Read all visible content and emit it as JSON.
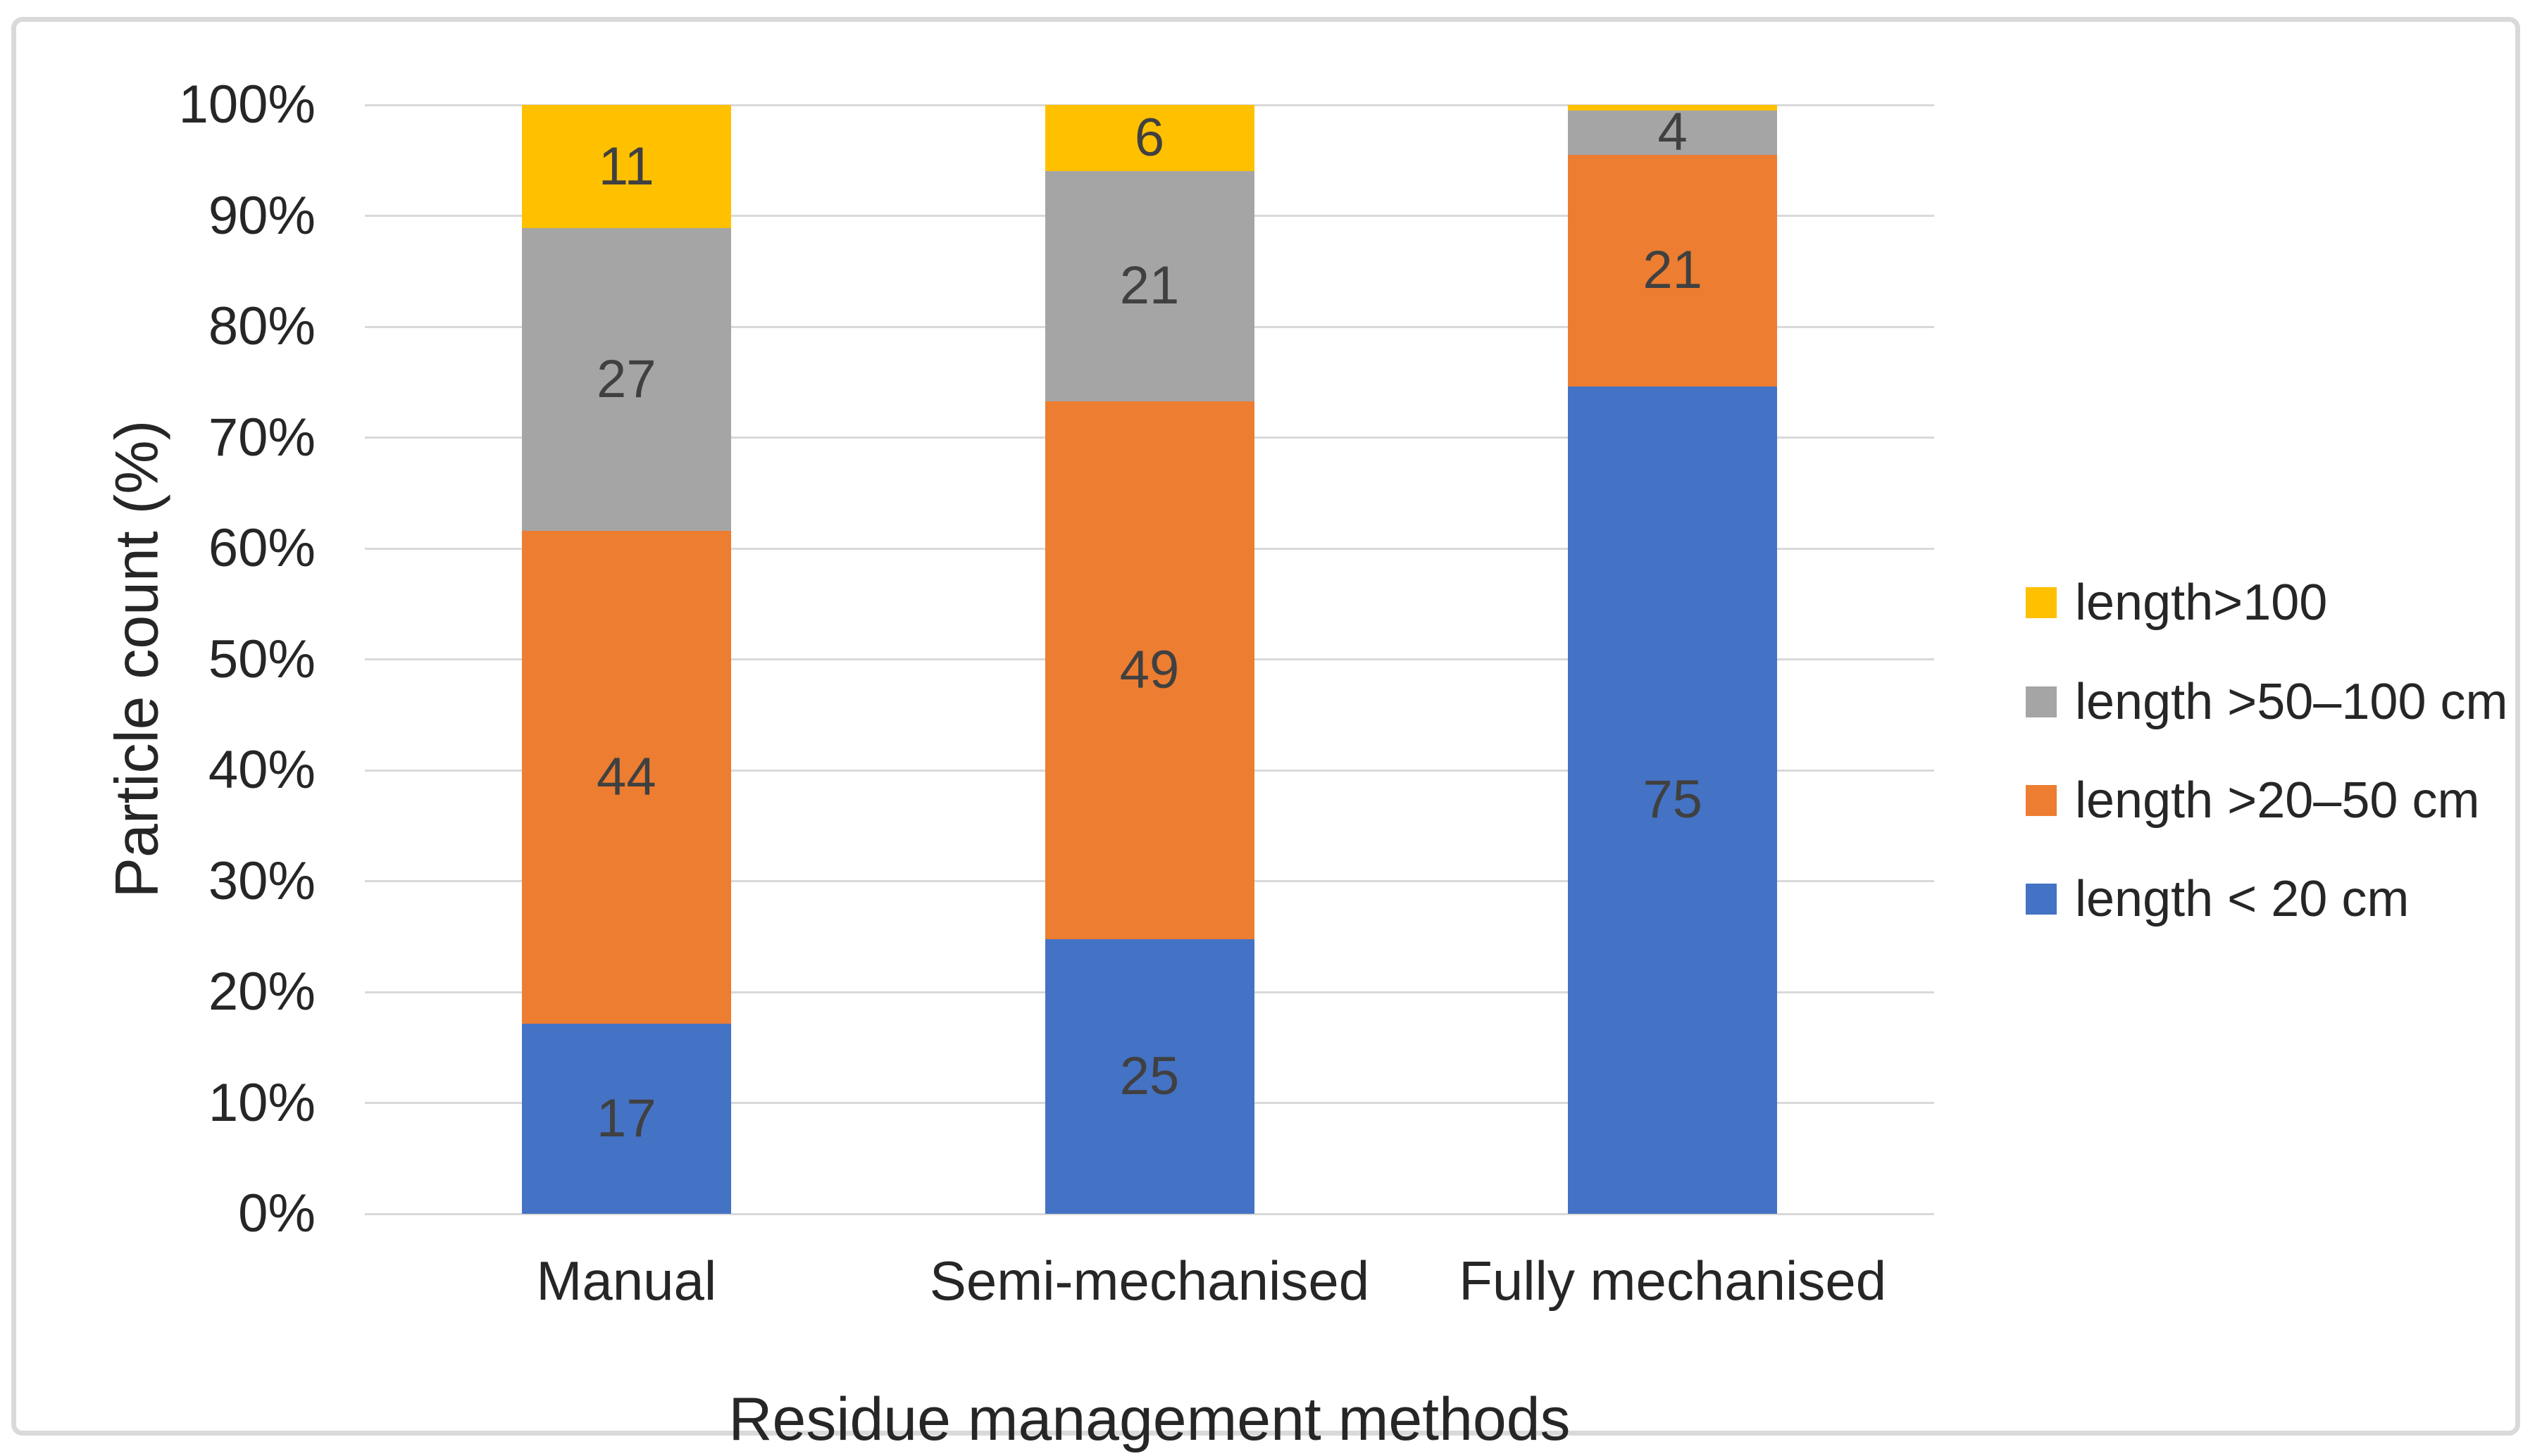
{
  "chart_data": {
    "type": "bar",
    "stacking": "percent",
    "title": "",
    "xlabel": "Residue management methods",
    "ylabel": "Particle count (%)",
    "categories": [
      "Manual",
      "Semi-mechanised",
      "Fully mechanised"
    ],
    "series": [
      {
        "name": "length < 20 cm",
        "color": "#4472C4",
        "values": [
          17,
          25,
          75
        ],
        "labels": [
          "17",
          "25",
          "75"
        ]
      },
      {
        "name": "length >20–50 cm",
        "color": "#ED7D31",
        "values": [
          44,
          49,
          21
        ],
        "labels": [
          "44",
          "49",
          "21"
        ]
      },
      {
        "name": "length >50–100 cm",
        "color": "#A5A5A5",
        "values": [
          27,
          21,
          4
        ],
        "labels": [
          "27",
          "21",
          "4"
        ]
      },
      {
        "name": "length>100",
        "color": "#FFC000",
        "values": [
          11,
          6,
          0.5
        ],
        "labels": [
          "11",
          "6",
          ""
        ]
      }
    ],
    "y_ticks": [
      "0%",
      "10%",
      "20%",
      "30%",
      "40%",
      "50%",
      "60%",
      "70%",
      "80%",
      "90%",
      "100%"
    ],
    "ylim": [
      0,
      100
    ],
    "grid": true,
    "legend_position": "right",
    "legend_order_top_to_bottom": [
      "length>100",
      "length >50–100 cm",
      "length >20–50 cm",
      "length < 20 cm"
    ],
    "colors": {
      "gridline": "#D9D9D9",
      "frame_border": "#D9D9D9",
      "axis_text": "#262626",
      "data_label": "#404040",
      "background": "#FFFFFF"
    }
  }
}
